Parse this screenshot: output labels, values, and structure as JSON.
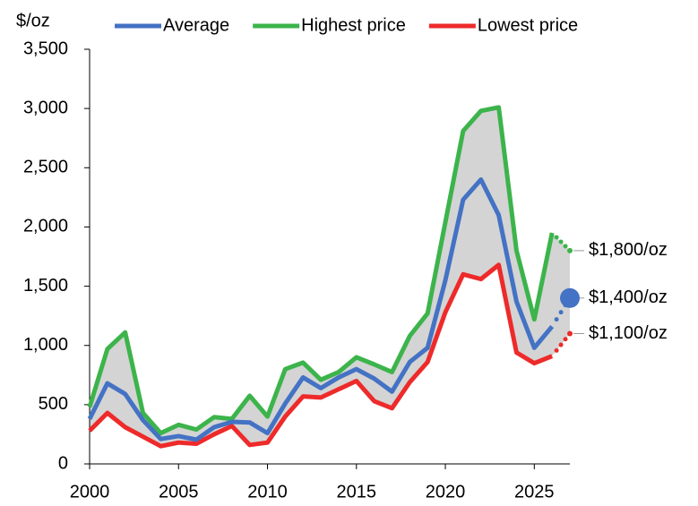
{
  "chart_data": {
    "type": "line",
    "y_unit_label": "$/oz",
    "x": [
      2000,
      2001,
      2002,
      2003,
      2004,
      2005,
      2006,
      2007,
      2008,
      2009,
      2010,
      2011,
      2012,
      2013,
      2014,
      2015,
      2016,
      2017,
      2018,
      2019,
      2020,
      2021,
      2022,
      2023,
      2024,
      2025,
      2026
    ],
    "forecast_x": 2027,
    "series": [
      {
        "name": "Average",
        "color": "#4472c4",
        "values": [
          380,
          680,
          590,
          370,
          210,
          235,
          205,
          310,
          355,
          350,
          260,
          510,
          730,
          640,
          730,
          800,
          720,
          610,
          860,
          980,
          1550,
          2230,
          2400,
          2100,
          1370,
          980,
          1160
        ],
        "forecast_value": 1400,
        "forecast_label": "$1,400/oz"
      },
      {
        "name": "Highest price",
        "color": "#3cb44b",
        "values": [
          480,
          970,
          1110,
          430,
          260,
          330,
          290,
          395,
          380,
          575,
          400,
          800,
          855,
          710,
          775,
          900,
          840,
          775,
          1080,
          1270,
          2040,
          2810,
          2980,
          3010,
          1800,
          1220,
          1950
        ],
        "forecast_value": 1800,
        "forecast_label": "$1,800/oz"
      },
      {
        "name": "Lowest price",
        "color": "#ee2a2a",
        "values": [
          280,
          430,
          310,
          230,
          150,
          180,
          170,
          250,
          320,
          160,
          180,
          400,
          570,
          560,
          630,
          700,
          530,
          470,
          690,
          860,
          1280,
          1600,
          1560,
          1680,
          940,
          850,
          910
        ],
        "forecast_value": 1100,
        "forecast_label": "$1,100/oz"
      }
    ],
    "range_fill": "#d4d4d4",
    "xlim": [
      2000,
      2027
    ],
    "xticks": [
      2000,
      2005,
      2010,
      2015,
      2020,
      2025
    ],
    "ylim": [
      0,
      3500
    ],
    "yticks": [
      0,
      500,
      {
        "value": 1000,
        "label": "1,000"
      },
      {
        "value": 1500,
        "label": "1,500"
      },
      {
        "value": 2000,
        "label": "2,000"
      },
      {
        "value": 2500,
        "label": "2,500"
      },
      {
        "value": 3000,
        "label": "3,000"
      },
      {
        "value": 3500,
        "label": "3,500"
      }
    ],
    "grid": false
  }
}
